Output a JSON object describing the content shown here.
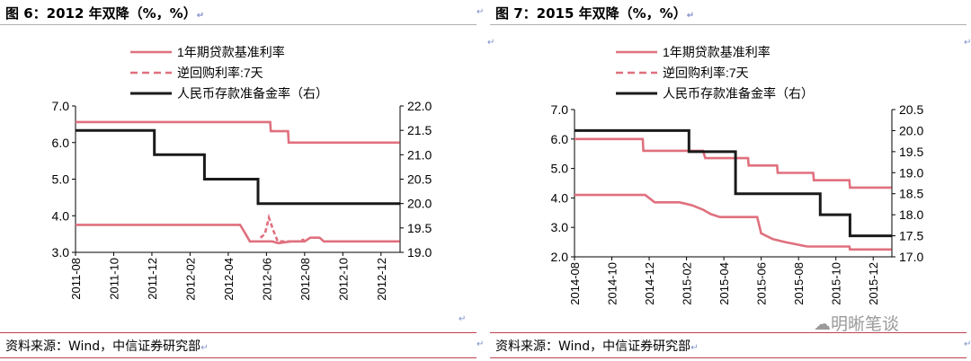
{
  "panels": [
    {
      "title": "图 6：2012 年双降（%，%）",
      "source": "资料来源：Wind，中信证券研究部",
      "chart_data": {
        "type": "line",
        "x": [
          "2011-08",
          "2011-10",
          "2011-12",
          "2012-02",
          "2012-04",
          "2012-06",
          "2012-08",
          "2012-10",
          "2012-12"
        ],
        "legend": [
          "1年期贷款基准利率",
          "逆回购利率:7天",
          "人民币存款准备金率（右）"
        ],
        "legend_placement": "top-center",
        "ylim_left": [
          3.0,
          7.0
        ],
        "yticks_left": [
          "3.0",
          "4.0",
          "5.0",
          "6.0",
          "7.0"
        ],
        "ylim_right": [
          19.0,
          22.0
        ],
        "yticks_right": [
          "19.0",
          "19.5",
          "20.0",
          "20.5",
          "21.0",
          "21.5",
          "22.0"
        ],
        "grid": false,
        "series": [
          {
            "name": "1年期贷款基准利率",
            "axis": "left",
            "color": "#e0707e",
            "style": "solid",
            "points": [
              [
                "2011-08-01",
                6.56
              ],
              [
                "2012-06-07",
                6.56
              ],
              [
                "2012-06-08",
                6.31
              ],
              [
                "2012-07-05",
                6.31
              ],
              [
                "2012-07-06",
                6.0
              ],
              [
                "2012-12-31",
                6.0
              ]
            ]
          },
          {
            "name": "逆回购利率:7天",
            "axis": "left",
            "color": "#e0707e",
            "style": "dashed",
            "points": [
              [
                "2012-05-22",
                3.4
              ],
              [
                "2012-05-29",
                3.5
              ],
              [
                "2012-06-05",
                3.95
              ],
              [
                "2012-06-12",
                3.6
              ],
              [
                "2012-06-19",
                3.3
              ],
              [
                "2012-07-01",
                3.3
              ],
              [
                "2012-07-10",
                3.3
              ],
              [
                "2012-07-20",
                3.3
              ],
              [
                "2012-07-31",
                3.35
              ]
            ]
          },
          {
            "name": "逆回购利率:7天 (连续段)",
            "axis": "left",
            "color": "#e0707e",
            "style": "solid",
            "points": [
              [
                "2011-08-01",
                3.75
              ],
              [
                "2012-04-20",
                3.75
              ],
              [
                "2012-04-27",
                3.55
              ],
              [
                "2012-05-05",
                3.3
              ],
              [
                "2012-06-10",
                3.3
              ],
              [
                "2012-06-20",
                3.25
              ],
              [
                "2012-07-10",
                3.3
              ],
              [
                "2012-08-01",
                3.3
              ],
              [
                "2012-08-10",
                3.4
              ],
              [
                "2012-08-25",
                3.4
              ],
              [
                "2012-09-01",
                3.3
              ],
              [
                "2012-12-31",
                3.3
              ]
            ]
          },
          {
            "name": "人民币存款准备金率（右）",
            "axis": "right",
            "color": "#1a1a1a",
            "style": "solid",
            "points": [
              [
                "2011-08-01",
                21.5
              ],
              [
                "2011-12-05",
                21.5
              ],
              [
                "2011-12-05",
                21.0
              ],
              [
                "2012-02-24",
                21.0
              ],
              [
                "2012-02-24",
                20.5
              ],
              [
                "2012-05-18",
                20.5
              ],
              [
                "2012-05-18",
                20.0
              ],
              [
                "2012-12-31",
                20.0
              ]
            ]
          }
        ]
      }
    },
    {
      "title": "图 7：2015 年双降（%，%）",
      "source": "资料来源：Wind，中信证券研究部",
      "chart_data": {
        "type": "line",
        "x": [
          "2014-08",
          "2014-10",
          "2014-12",
          "2015-02",
          "2015-04",
          "2015-06",
          "2015-08",
          "2015-10",
          "2015-12"
        ],
        "legend": [
          "1年期贷款基准利率",
          "逆回购利率:7天",
          "人民币存款准备金率（右）"
        ],
        "legend_placement": "top-center",
        "ylim_left": [
          2.0,
          7.0
        ],
        "yticks_left": [
          "2.0",
          "3.0",
          "4.0",
          "5.0",
          "6.0",
          "7.0"
        ],
        "ylim_right": [
          17.0,
          20.5
        ],
        "yticks_right": [
          "17.0",
          "17.5",
          "18.0",
          "18.5",
          "19.0",
          "19.5",
          "20.0",
          "20.5"
        ],
        "grid": false,
        "series": [
          {
            "name": "1年期贷款基准利率",
            "axis": "left",
            "color": "#e0707e",
            "style": "solid",
            "points": [
              [
                "2014-08-01",
                6.0
              ],
              [
                "2014-11-21",
                6.0
              ],
              [
                "2014-11-22",
                5.6
              ],
              [
                "2015-02-28",
                5.6
              ],
              [
                "2015-03-01",
                5.35
              ],
              [
                "2015-05-10",
                5.35
              ],
              [
                "2015-05-11",
                5.1
              ],
              [
                "2015-06-27",
                5.1
              ],
              [
                "2015-06-28",
                4.85
              ],
              [
                "2015-08-25",
                4.85
              ],
              [
                "2015-08-26",
                4.6
              ],
              [
                "2015-10-23",
                4.6
              ],
              [
                "2015-10-24",
                4.35
              ],
              [
                "2015-12-31",
                4.35
              ]
            ]
          },
          {
            "name": "逆回购利率:7天",
            "axis": "left",
            "color": "#e0707e",
            "style": "solid",
            "points": [
              [
                "2014-08-01",
                4.1
              ],
              [
                "2014-11-25",
                4.1
              ],
              [
                "2014-12-10",
                3.85
              ],
              [
                "2015-01-20",
                3.85
              ],
              [
                "2015-02-10",
                3.75
              ],
              [
                "2015-02-28",
                3.6
              ],
              [
                "2015-03-10",
                3.45
              ],
              [
                "2015-03-25",
                3.35
              ],
              [
                "2015-05-25",
                3.35
              ],
              [
                "2015-06-01",
                2.8
              ],
              [
                "2015-06-20",
                2.6
              ],
              [
                "2015-07-10",
                2.5
              ],
              [
                "2015-08-15",
                2.35
              ],
              [
                "2015-10-23",
                2.35
              ],
              [
                "2015-10-24",
                2.25
              ],
              [
                "2015-12-31",
                2.25
              ]
            ]
          },
          {
            "name": "人民币存款准备金率（右）",
            "axis": "right",
            "color": "#1a1a1a",
            "style": "solid",
            "points": [
              [
                "2014-08-01",
                20.0
              ],
              [
                "2015-02-05",
                20.0
              ],
              [
                "2015-02-05",
                19.5
              ],
              [
                "2015-04-20",
                19.5
              ],
              [
                "2015-04-20",
                18.5
              ],
              [
                "2015-09-06",
                18.5
              ],
              [
                "2015-09-06",
                18.0
              ],
              [
                "2015-10-24",
                18.0
              ],
              [
                "2015-10-24",
                17.5
              ],
              [
                "2015-12-31",
                17.5
              ]
            ]
          }
        ]
      }
    }
  ],
  "watermark": "明晰笔谈",
  "return_mark": "↵"
}
